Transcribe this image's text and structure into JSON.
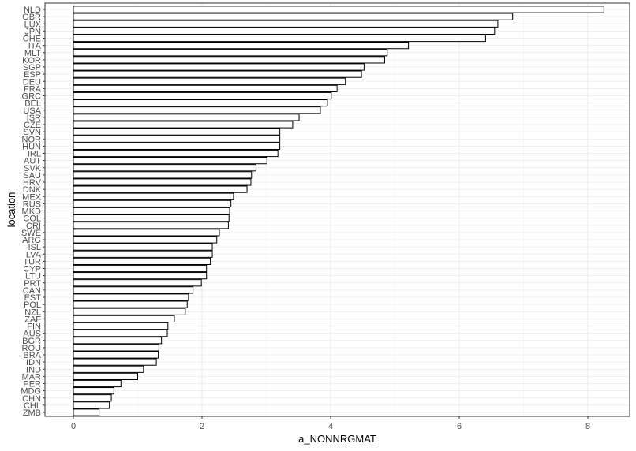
{
  "chart_data": {
    "type": "bar",
    "orientation": "horizontal",
    "xlabel": "a_NONNRGMAT",
    "ylabel": "location",
    "xlim": [
      0,
      8.6
    ],
    "x_ticks": [
      0,
      2,
      4,
      6,
      8
    ],
    "grid": true,
    "categories": [
      "NLD",
      "GBR",
      "LUX",
      "JPN",
      "CHE",
      "ITA",
      "MLT",
      "KOR",
      "SGP",
      "ESP",
      "DEU",
      "FRA",
      "GRC",
      "BEL",
      "USA",
      "ISR",
      "CZE",
      "SVN",
      "NOR",
      "HUN",
      "IRL",
      "AUT",
      "SVK",
      "SAU",
      "HRV",
      "DNK",
      "MEX",
      "RUS",
      "MKD",
      "COL",
      "CRI",
      "SWE",
      "ARG",
      "ISL",
      "LVA",
      "TUR",
      "CYP",
      "LTU",
      "PRT",
      "CAN",
      "EST",
      "POL",
      "NZL",
      "ZAF",
      "FIN",
      "AUS",
      "BGR",
      "ROU",
      "BRA",
      "IDN",
      "IND",
      "MAR",
      "PER",
      "MDG",
      "CHN",
      "CHL",
      "ZMB"
    ],
    "values": [
      8.25,
      6.83,
      6.6,
      6.55,
      6.41,
      5.21,
      4.88,
      4.84,
      4.52,
      4.48,
      4.23,
      4.1,
      4.01,
      3.95,
      3.84,
      3.51,
      3.41,
      3.21,
      3.21,
      3.21,
      3.18,
      3.01,
      2.84,
      2.77,
      2.76,
      2.7,
      2.49,
      2.45,
      2.43,
      2.42,
      2.41,
      2.27,
      2.23,
      2.16,
      2.16,
      2.13,
      2.07,
      2.07,
      1.99,
      1.86,
      1.79,
      1.77,
      1.74,
      1.57,
      1.47,
      1.46,
      1.37,
      1.33,
      1.32,
      1.29,
      1.09,
      1.0,
      0.74,
      0.63,
      0.59,
      0.56,
      0.4
    ],
    "bar_fill": "#ffffff",
    "bar_stroke": "#000000",
    "panel_border": "#333333",
    "grid_major": "#ebebeb",
    "grid_minor": "#f5f5f5"
  }
}
